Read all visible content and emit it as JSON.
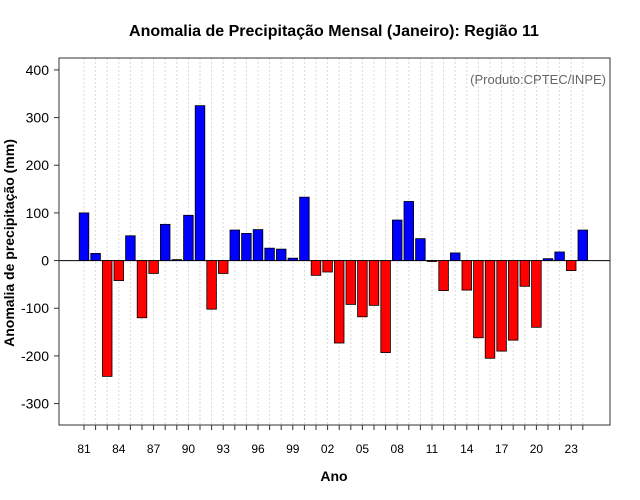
{
  "chart_data": {
    "type": "bar",
    "title": "Anomalia de Precipitação Mensal (Janeiro): Região 11",
    "xlabel": "Ano",
    "ylabel": "Anomalia de precipitação (mm)",
    "annotation": "(Produto:CPTEC/INPE)",
    "ylim": [
      -345,
      425
    ],
    "yticks": [
      -300,
      -200,
      -100,
      0,
      100,
      200,
      300,
      400
    ],
    "grid": true,
    "x_tick_labels": [
      "81",
      "84",
      "87",
      "90",
      "93",
      "96",
      "99",
      "02",
      "05",
      "08",
      "11",
      "14",
      "17",
      "20",
      "23"
    ],
    "categories": [
      "1981",
      "1982",
      "1983",
      "1984",
      "1985",
      "1986",
      "1987",
      "1988",
      "1989",
      "1990",
      "1991",
      "1992",
      "1993",
      "1994",
      "1995",
      "1996",
      "1997",
      "1998",
      "1999",
      "2000",
      "2001",
      "2002",
      "2003",
      "2004",
      "2005",
      "2006",
      "2007",
      "2008",
      "2009",
      "2010",
      "2011",
      "2012",
      "2013",
      "2014",
      "2015",
      "2016",
      "2017",
      "2018",
      "2019",
      "2020",
      "2021",
      "2022",
      "2023",
      "2024"
    ],
    "values": [
      100,
      15,
      -243,
      -42,
      52,
      -120,
      -27,
      76,
      2,
      95,
      325,
      -102,
      -27,
      64,
      57,
      65,
      26,
      24,
      5,
      133,
      -31,
      -24,
      -173,
      -92,
      -118,
      -94,
      -193,
      85,
      124,
      46,
      -2,
      -63,
      16,
      -62,
      -162,
      -205,
      -190,
      -167,
      -54,
      -140,
      4,
      18,
      -21,
      64
    ],
    "colors": {
      "positive": "#0000ff",
      "negative": "#ff0000"
    }
  }
}
